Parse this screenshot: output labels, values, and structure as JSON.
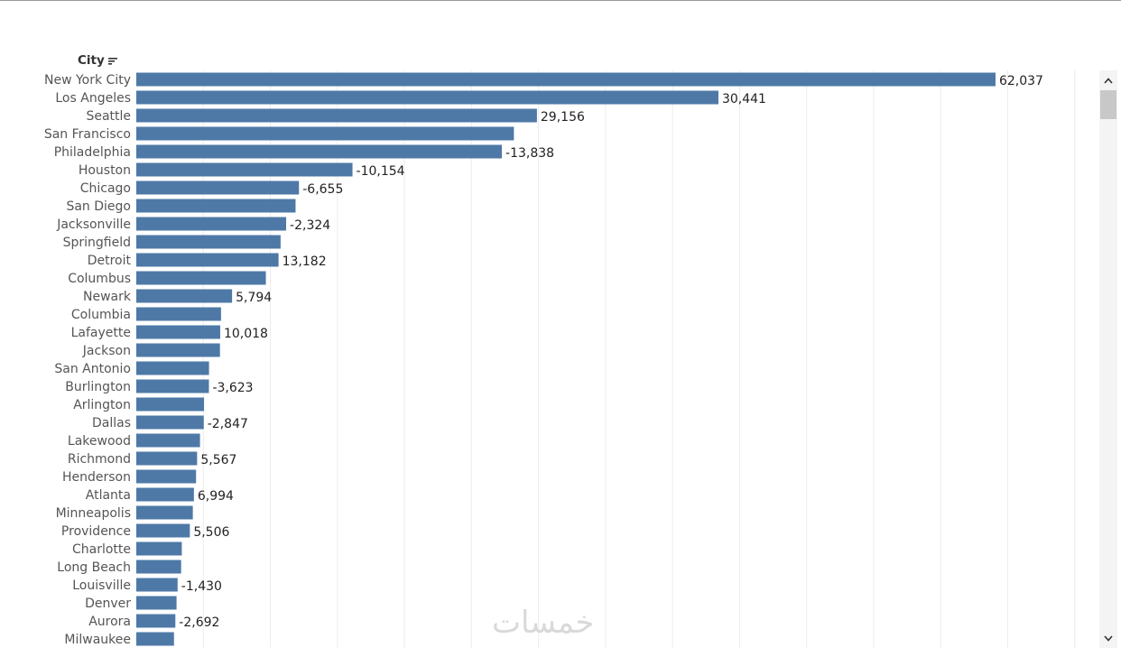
{
  "header": {
    "label": "City"
  },
  "icons": {
    "sort": "sort-descending-icon",
    "scroll_up": "chevron-up-icon",
    "scroll_down": "chevron-down-icon"
  },
  "watermark": "خمسات",
  "colors": {
    "bar": "#4e79a7",
    "grid": "#ececec"
  },
  "chart_data": {
    "type": "bar",
    "orientation": "horizontal",
    "category_header": "City",
    "categories": [
      "New York City",
      "Los Angeles",
      "Seattle",
      "San Francisco",
      "Philadelphia",
      "Houston",
      "Chicago",
      "San Diego",
      "Jacksonville",
      "Springfield",
      "Detroit",
      "Columbus",
      "Newark",
      "Columbia",
      "Lafayette",
      "Jackson",
      "San Antonio",
      "Burlington",
      "Arlington",
      "Dallas",
      "Lakewood",
      "Richmond",
      "Henderson",
      "Atlanta",
      "Minneapolis",
      "Providence",
      "Charlotte",
      "Long Beach",
      "Louisville",
      "Denver",
      "Aurora",
      "Milwaukee"
    ],
    "values": [
      256368,
      173690,
      119541,
      112670,
      109077,
      64505,
      48540,
      47521,
      44713,
      43054,
      42446,
      38662,
      28577,
      25283,
      25037,
      24964,
      21700,
      21668,
      20214,
      20131,
      19014,
      18138,
      17832,
      17198,
      16870,
      15980,
      13582,
      13380,
      12330,
      12008,
      11656,
      11249
    ],
    "data_labels": [
      "62,037",
      "30,441",
      "29,156",
      "",
      "-13,838",
      "-10,154",
      "-6,655",
      "",
      "-2,324",
      "",
      "13,182",
      "",
      "5,794",
      "",
      "10,018",
      "",
      "",
      "-3,623",
      "",
      "-2,847",
      "",
      "5,567",
      "",
      "6,994",
      "",
      "5,506",
      "",
      "",
      "-1,430",
      "",
      "-2,692",
      ""
    ],
    "xlim": [
      0,
      300000
    ],
    "gridlines": true
  }
}
